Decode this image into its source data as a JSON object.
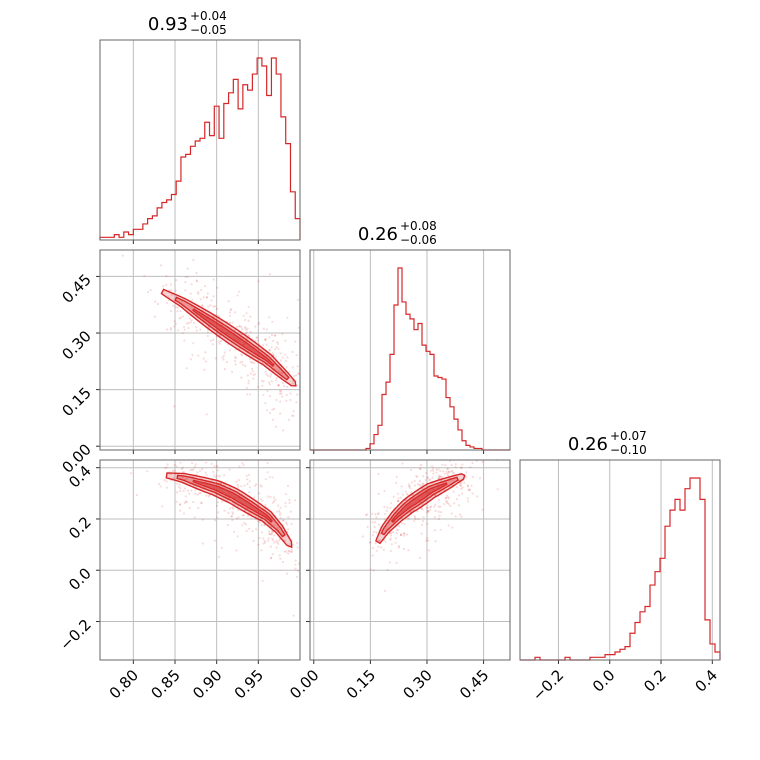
{
  "chart_data": {
    "type": "corner",
    "color": "#d62728",
    "parameters": [
      {
        "range": [
          0.76,
          1.0
        ],
        "ticks": [
          0.8,
          0.85,
          0.9,
          0.95
        ],
        "tick_labels": [
          "0.80",
          "0.85",
          "0.90",
          "0.95"
        ],
        "summary": {
          "median": "0.93",
          "plus": "+0.04",
          "minus": "−0.05"
        }
      },
      {
        "range": [
          -0.01,
          0.52
        ],
        "ticks": [
          0.0,
          0.15,
          0.3,
          0.45
        ],
        "tick_labels": [
          "0.00",
          "0.15",
          "0.30",
          "0.45"
        ],
        "summary": {
          "median": "0.26",
          "plus": "+0.08",
          "minus": "−0.06"
        }
      },
      {
        "range": [
          -0.35,
          0.43
        ],
        "ticks": [
          -0.2,
          0.0,
          0.2,
          0.4
        ],
        "tick_labels": [
          "−0.2",
          "0.0",
          "0.2",
          "0.4"
        ],
        "summary": {
          "median": "0.26",
          "plus": "+0.07",
          "minus": "−0.10"
        }
      }
    ],
    "histograms": [
      {
        "param": 0,
        "range": [
          0.76,
          1.0
        ],
        "counts": [
          1,
          1,
          1,
          2,
          1,
          3,
          2,
          4,
          4,
          6,
          8,
          9,
          12,
          14,
          15,
          17,
          22,
          31,
          32,
          35,
          37,
          38,
          44,
          39,
          50,
          38,
          51,
          55,
          60,
          49,
          58,
          56,
          62,
          68,
          65,
          54,
          68,
          62,
          46,
          36,
          18,
          8
        ]
      },
      {
        "param": 1,
        "range": [
          -0.01,
          0.52
        ],
        "counts": [
          0,
          0,
          0,
          0,
          0,
          0,
          0,
          0,
          0,
          0,
          0,
          0,
          0,
          0,
          1,
          4,
          10,
          16,
          36,
          44,
          62,
          94,
          118,
          96,
          88,
          85,
          78,
          82,
          68,
          64,
          62,
          48,
          47,
          46,
          34,
          28,
          20,
          13,
          6,
          3,
          2,
          1,
          1,
          0,
          0,
          0,
          0,
          0,
          0,
          0
        ]
      },
      {
        "param": 2,
        "range": [
          -0.35,
          0.43
        ],
        "counts": [
          0,
          0,
          0,
          1,
          0,
          0,
          0,
          0,
          0,
          1,
          0,
          0,
          0,
          0,
          1,
          1,
          1,
          2,
          2,
          3,
          4,
          5,
          10,
          14,
          18,
          20,
          28,
          33,
          38,
          50,
          56,
          60,
          56,
          64,
          68,
          68,
          60,
          15,
          6,
          3
        ]
      }
    ],
    "scatter_panels": [
      {
        "row": 1,
        "col": 0,
        "ridge_x": [
          0.835,
          0.86,
          0.88,
          0.9,
          0.92,
          0.94,
          0.96,
          0.98,
          0.995
        ],
        "ridge_y": [
          0.41,
          0.38,
          0.35,
          0.32,
          0.29,
          0.26,
          0.23,
          0.19,
          0.16
        ],
        "width": 0.022
      },
      {
        "row": 2,
        "col": 0,
        "ridge_x": [
          0.84,
          0.86,
          0.88,
          0.9,
          0.92,
          0.94,
          0.96,
          0.975,
          0.99
        ],
        "ridge_y": [
          0.37,
          0.36,
          0.34,
          0.32,
          0.29,
          0.25,
          0.21,
          0.16,
          0.09
        ],
        "width": 0.025
      },
      {
        "row": 2,
        "col": 1,
        "ridge_x": [
          0.17,
          0.19,
          0.22,
          0.25,
          0.28,
          0.31,
          0.34,
          0.37,
          0.4
        ],
        "ridge_y": [
          0.11,
          0.16,
          0.21,
          0.25,
          0.28,
          0.31,
          0.33,
          0.35,
          0.37
        ],
        "width": 0.025
      }
    ]
  }
}
